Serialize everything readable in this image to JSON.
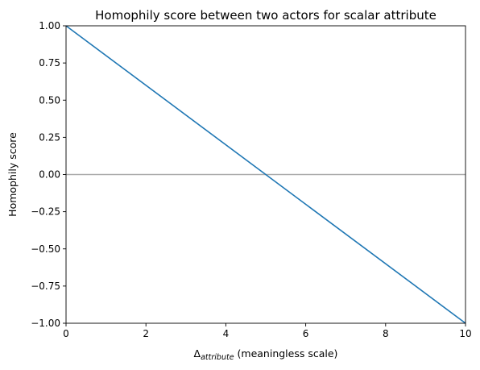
{
  "chart_data": {
    "type": "line",
    "title": "Homophily score between two actors for scalar attribute",
    "xlabel": {
      "symbol": "Δ",
      "subscript": "attribute",
      "rest": " (meaningless scale)"
    },
    "ylabel": "Homophily score",
    "xlim": [
      0,
      10
    ],
    "ylim": [
      -1.0,
      1.0
    ],
    "x_ticks": [
      0,
      2,
      4,
      6,
      8,
      10
    ],
    "x_tick_labels": [
      "0",
      "2",
      "4",
      "6",
      "8",
      "10"
    ],
    "y_ticks": [
      -1.0,
      -0.75,
      -0.5,
      -0.25,
      0.0,
      0.25,
      0.5,
      0.75,
      1.0
    ],
    "y_tick_labels": [
      "−1.00",
      "−0.75",
      "−0.50",
      "−0.25",
      "0.00",
      "0.25",
      "0.50",
      "0.75",
      "1.00"
    ],
    "grid": false,
    "series": [
      {
        "x": [
          0,
          10
        ],
        "y": [
          1.0,
          -1.0
        ],
        "color": "#1f77b4"
      }
    ],
    "reference_lines": [
      {
        "axis": "y",
        "value": 0.0,
        "color": "#aaaaaa"
      }
    ]
  }
}
